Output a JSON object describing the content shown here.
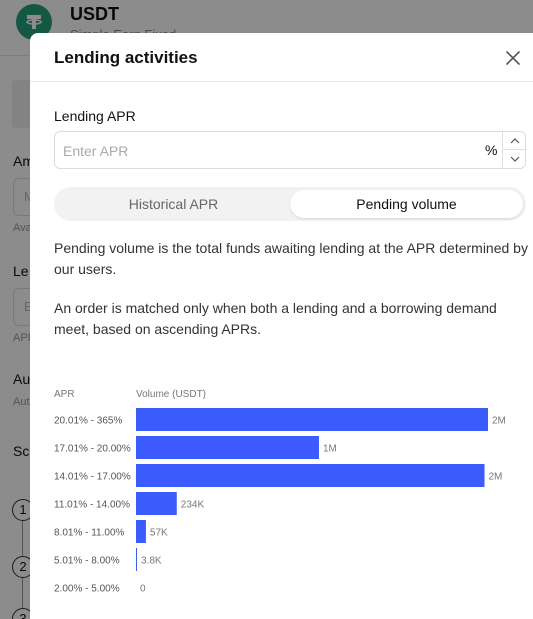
{
  "background": {
    "title": "USDT",
    "subtitle": "Simple Earn Fixed",
    "labels": [
      "Am",
      "Le",
      "Au",
      "Sc"
    ],
    "small_labels": [
      "Ava",
      "APR",
      "Aut"
    ],
    "field_hint": "M",
    "field_hint2": "E",
    "steps": [
      "1",
      "2",
      "3"
    ]
  },
  "modal": {
    "title": "Lending activities",
    "apr_label": "Lending APR",
    "apr_placeholder": "Enter APR",
    "apr_value": "",
    "unit": "%",
    "tabs": [
      {
        "label": "Historical APR",
        "active": false
      },
      {
        "label": "Pending volume",
        "active": true
      }
    ],
    "desc1": "Pending volume is the total funds awaiting lending at the APR determined by our users.",
    "desc2": "An order is matched only when both a lending and a borrowing demand meet, based on ascending APRs."
  },
  "colors": {
    "bar": "#3b5bfc",
    "tether": "#26a17b"
  },
  "icons": [
    "tether-logo-icon",
    "close-icon",
    "chevron-up-icon",
    "chevron-down-icon"
  ],
  "chart_data": {
    "type": "bar",
    "orientation": "horizontal",
    "category_header": "APR",
    "value_header": "Volume (USDT)",
    "categories": [
      "20.01% - 365%",
      "17.01% - 20.00%",
      "14.01% - 17.00%",
      "11.01% - 14.00%",
      "8.01% - 11.00%",
      "5.01% - 8.00%",
      "2.00% - 5.00%"
    ],
    "values": [
      2020000,
      1050000,
      2000000,
      234000,
      57000,
      3800,
      0
    ],
    "value_labels": [
      "2M",
      "1M",
      "2M",
      "234K",
      "57K",
      "3.8K",
      "0"
    ]
  }
}
